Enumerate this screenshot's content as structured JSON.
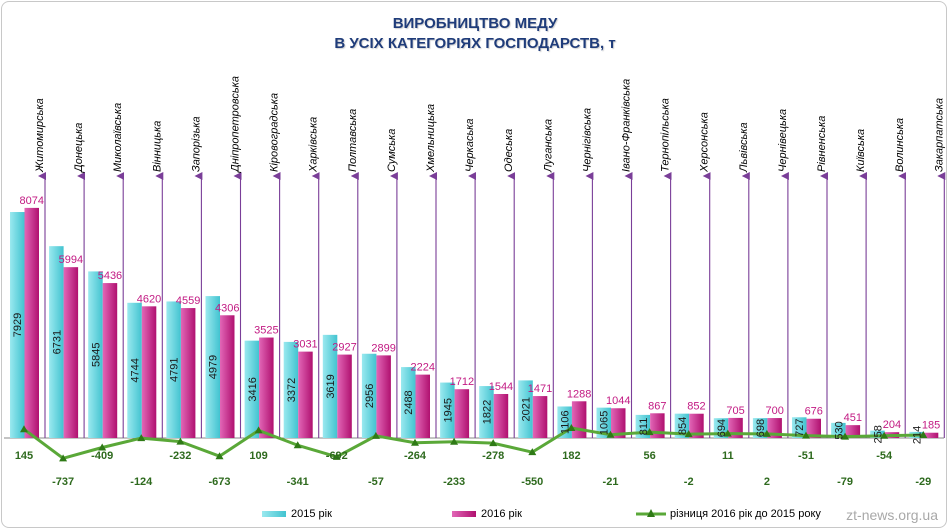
{
  "chart_data": {
    "type": "bar",
    "title": "ВИРОБНИЦТВО  МЕДУ",
    "subtitle": "В УСІХ КАТЕГОРІЯХ ГОСПОДАРСТВ, т",
    "categories": [
      "Житомирська",
      "Донецька",
      "Миколаївська",
      "Вінницька",
      "Запорізька",
      "Дніпропетровська",
      "Кіровоградська",
      "Харківська",
      "Полтавська",
      "Сумська",
      "Хмельницька",
      "Черкаська",
      "Одеська",
      "Луганська",
      "Чернігівська",
      "Івано-Франківська",
      "Тернопільська",
      "Херсонська",
      "Львівська",
      "Чернівецька",
      "Рівненська",
      "Київська",
      "Волинська",
      "Закарпатська"
    ],
    "series": [
      {
        "name": "2015 рік",
        "type": "bar",
        "color": "#5dd6e0",
        "values": [
          7929,
          6731,
          5845,
          4744,
          4791,
          4979,
          3416,
          3372,
          3619,
          2956,
          2488,
          1945,
          1822,
          2021,
          1106,
          1065,
          811,
          854,
          694,
          698,
          727,
          530,
          258,
          214
        ]
      },
      {
        "name": "2016 рік",
        "type": "bar",
        "color": "#c21a83",
        "values": [
          8074,
          5994,
          5436,
          4620,
          4559,
          4306,
          3525,
          3031,
          2927,
          2899,
          2224,
          1712,
          1544,
          1471,
          1288,
          1044,
          867,
          852,
          705,
          700,
          676,
          451,
          204,
          185
        ]
      },
      {
        "name": "різниця 2016 рік до 2015 року",
        "type": "line",
        "color": "#5aa838",
        "values": [
          145,
          -737,
          -409,
          -124,
          -232,
          -673,
          109,
          -341,
          -692,
          -57,
          -264,
          -233,
          -278,
          -550,
          182,
          -21,
          56,
          -2,
          11,
          2,
          -51,
          -79,
          -54,
          -29
        ]
      }
    ],
    "legend_position": "bottom",
    "grid": false
  },
  "watermark": "zt-news.org.ua",
  "colors": {
    "title": "#1f3c7a",
    "arrows": "#7a3e98",
    "value_2016": "#c21a83",
    "value_diff": "#2e6a1e"
  }
}
